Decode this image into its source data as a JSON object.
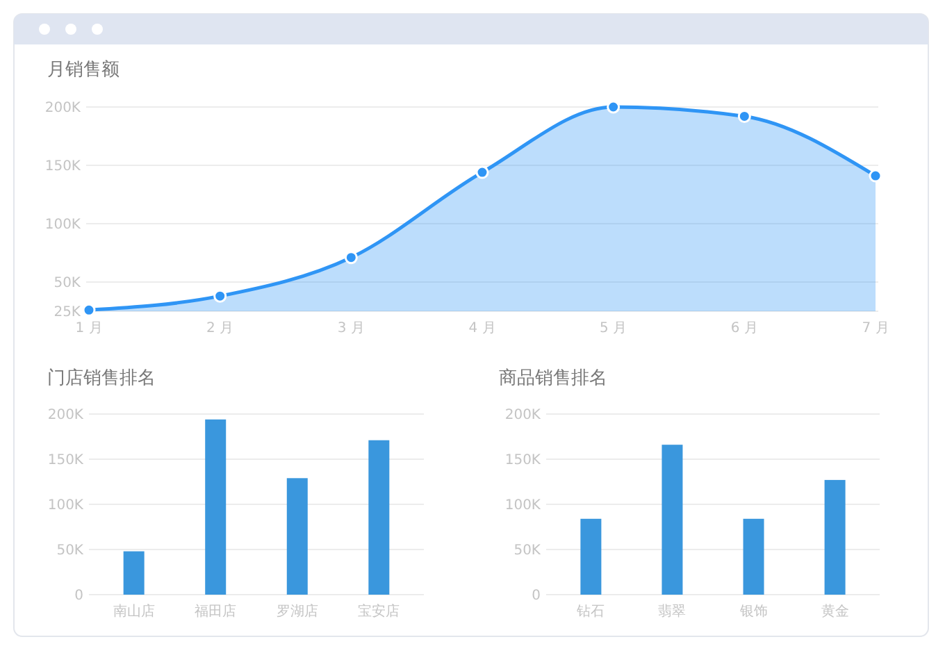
{
  "chart_data": [
    {
      "type": "area",
      "title": "月销售额",
      "categories": [
        "1 月",
        "2 月",
        "3 月",
        "4 月",
        "5 月",
        "6 月",
        "7 月"
      ],
      "series": [
        {
          "color": "#2f95f5",
          "values": [
            26000,
            38000,
            71000,
            144000,
            200000,
            192000,
            141000
          ]
        }
      ],
      "ylim": [
        25000,
        200000
      ],
      "yticks": [
        {
          "value": 25000,
          "label": "25K"
        },
        {
          "value": 50000,
          "label": "50K"
        },
        {
          "value": 100000,
          "label": "100K"
        },
        {
          "value": 150000,
          "label": "150K"
        },
        {
          "value": 200000,
          "label": "200K"
        }
      ],
      "grid": "y",
      "marker": "circle"
    },
    {
      "type": "bar",
      "title": "门店销售排名",
      "categories": [
        "南山店",
        "福田店",
        "罗湖店",
        "宝安店"
      ],
      "series": [
        {
          "color": "#3a97dd",
          "values": [
            48000,
            194000,
            129000,
            171000
          ]
        }
      ],
      "ylim": [
        0,
        200000
      ],
      "yticks": [
        0,
        {
          "value": 50000,
          "label": "50K"
        },
        {
          "value": 100000,
          "label": "100K"
        },
        {
          "value": 150000,
          "label": "150K"
        },
        {
          "value": 200000,
          "label": "200K"
        }
      ],
      "grid": "y"
    },
    {
      "type": "bar",
      "title": "商品销售排名",
      "categories": [
        "钻石",
        "翡翠",
        "银饰",
        "黄金"
      ],
      "series": [
        {
          "color": "#3a97dd",
          "values": [
            84000,
            166000,
            84000,
            127000
          ]
        }
      ],
      "ylim": [
        0,
        200000
      ],
      "yticks": [
        0,
        {
          "value": 50000,
          "label": "50K"
        },
        {
          "value": 100000,
          "label": "100K"
        },
        {
          "value": 150000,
          "label": "150K"
        },
        {
          "value": 200000,
          "label": "200K"
        }
      ],
      "grid": "y"
    }
  ]
}
